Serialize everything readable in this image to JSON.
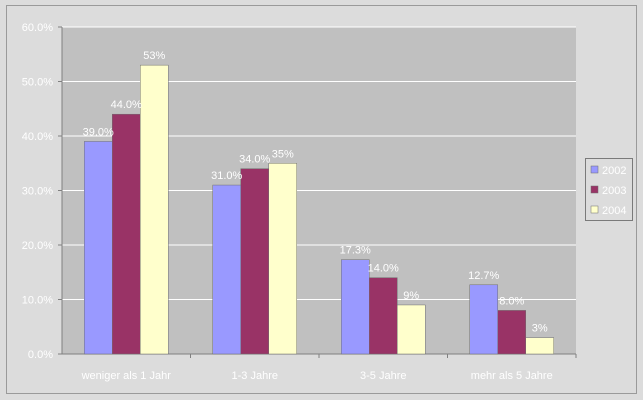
{
  "colors": {
    "outer_background": "#dcdcdc",
    "plot_background": "#c0c0c0",
    "gridline": "#ffffff",
    "axis": "#808080",
    "tick_text": "#ffffff",
    "data_label_text": "#ffffff"
  },
  "chart_data": {
    "type": "bar",
    "title": "",
    "xlabel": "",
    "ylabel": "",
    "categories": [
      "weniger als 1 Jahr",
      "1-3 Jahre",
      "3-5 Jahre",
      "mehr als 5 Jahre"
    ],
    "series": [
      {
        "name": "2002",
        "color": "#9999ff",
        "values": [
          39.0,
          31.0,
          17.3,
          12.7
        ],
        "labels": [
          "39.0%",
          "31.0%",
          "17.3%",
          "12.7%"
        ]
      },
      {
        "name": "2003",
        "color": "#993366",
        "values": [
          44.0,
          34.0,
          14.0,
          8.0
        ],
        "labels": [
          "44.0%",
          "34.0%",
          "14.0%",
          "8.0%"
        ]
      },
      {
        "name": "2004",
        "color": "#ffffcc",
        "values": [
          53.0,
          35.0,
          9.0,
          3.0
        ],
        "labels": [
          "53%",
          "35%",
          "9%",
          "3%"
        ]
      }
    ],
    "ylim": [
      0,
      60
    ],
    "yticks": [
      0,
      10,
      20,
      30,
      40,
      50,
      60
    ],
    "ytick_labels": [
      "0.0%",
      "10.0%",
      "20.0%",
      "30.0%",
      "40.0%",
      "50.0%",
      "60.0%"
    ],
    "grid": true,
    "legend_position": "right"
  }
}
